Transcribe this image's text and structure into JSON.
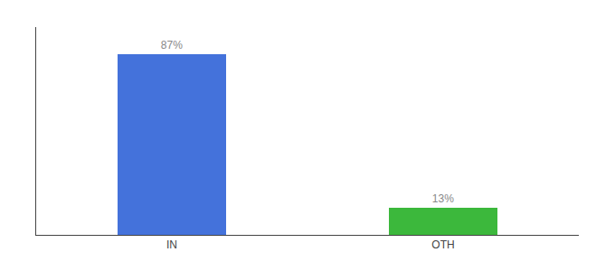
{
  "chart_data": {
    "type": "bar",
    "categories": [
      "IN",
      "OTH"
    ],
    "values": [
      87,
      13
    ],
    "value_labels": [
      "87%",
      "13%"
    ],
    "colors": [
      "#4472db",
      "#3cb83c"
    ],
    "ylim": [
      0,
      100
    ],
    "grid": false,
    "data_labels": true,
    "tick_labels": "x"
  }
}
